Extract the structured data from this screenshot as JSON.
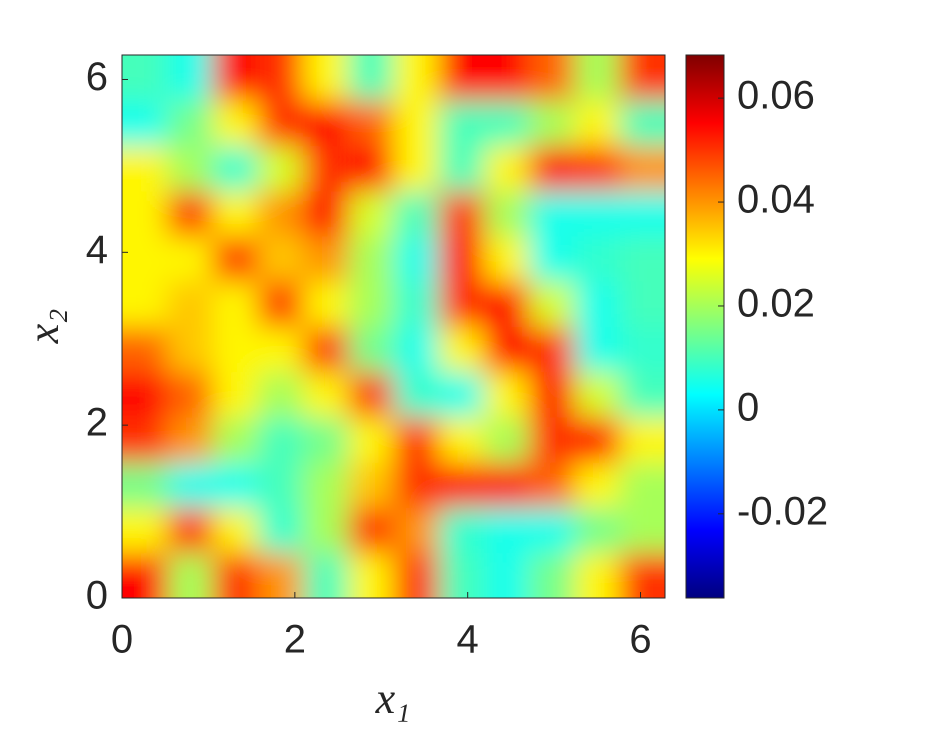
{
  "chart_data": {
    "type": "heatmap",
    "colormap": "jet",
    "xlabel": "x₁",
    "ylabel": "x₂",
    "xlim": [
      0,
      6.2832
    ],
    "ylim": [
      0,
      6.2832
    ],
    "xticks": [
      0,
      2,
      4,
      6
    ],
    "yticks": [
      0,
      2,
      4,
      6
    ],
    "clim": [
      -0.0362,
      0.0683
    ],
    "cticks": [
      -0.02,
      0,
      0.02,
      0.04,
      0.06
    ],
    "x": [
      0.26,
      0.79,
      1.31,
      1.83,
      2.36,
      2.88,
      3.4,
      3.93,
      4.45,
      4.97,
      5.5,
      6.02
    ],
    "y": [
      0.26,
      0.79,
      1.31,
      1.83,
      2.36,
      2.88,
      3.4,
      3.93,
      4.45,
      4.97,
      5.5,
      6.02
    ],
    "z": [
      [
        0.055,
        0.02,
        0.05,
        0.04,
        0.01,
        0.03,
        0.05,
        0.01,
        0.005,
        0.015,
        0.03,
        0.05
      ],
      [
        0.03,
        0.05,
        0.03,
        0.008,
        0.02,
        0.05,
        0.04,
        0.008,
        0.005,
        0.005,
        0.015,
        0.02
      ],
      [
        0.015,
        0.005,
        0.005,
        0.01,
        0.02,
        0.035,
        0.05,
        0.055,
        0.055,
        0.045,
        0.03,
        0.02
      ],
      [
        0.05,
        0.04,
        0.02,
        0.01,
        0.015,
        0.03,
        0.05,
        0.03,
        0.02,
        0.05,
        0.055,
        0.03
      ],
      [
        0.055,
        0.045,
        0.03,
        0.02,
        0.03,
        0.05,
        0.008,
        0.005,
        0.03,
        0.055,
        0.025,
        0.01
      ],
      [
        0.045,
        0.035,
        0.03,
        0.03,
        0.05,
        0.015,
        0.005,
        0.03,
        0.055,
        0.05,
        0.005,
        0.008
      ],
      [
        0.03,
        0.035,
        0.03,
        0.05,
        0.03,
        0.02,
        0.008,
        0.05,
        0.055,
        0.025,
        0.005,
        0.01
      ],
      [
        0.03,
        0.03,
        0.05,
        0.035,
        0.04,
        0.02,
        0.005,
        0.055,
        0.03,
        0.005,
        0.008,
        0.01
      ],
      [
        0.03,
        0.05,
        0.03,
        0.04,
        0.055,
        0.025,
        0.01,
        0.05,
        0.02,
        0.005,
        0.005,
        0.005
      ],
      [
        0.03,
        0.02,
        0.008,
        0.025,
        0.05,
        0.055,
        0.03,
        0.01,
        0.03,
        0.055,
        0.05,
        0.04
      ],
      [
        0.005,
        0.015,
        0.03,
        0.05,
        0.055,
        0.045,
        0.03,
        0.01,
        0.01,
        0.02,
        0.03,
        0.01
      ],
      [
        0.01,
        0.005,
        0.055,
        0.05,
        0.03,
        0.01,
        0.03,
        0.055,
        0.055,
        0.045,
        0.02,
        0.05
      ]
    ]
  }
}
